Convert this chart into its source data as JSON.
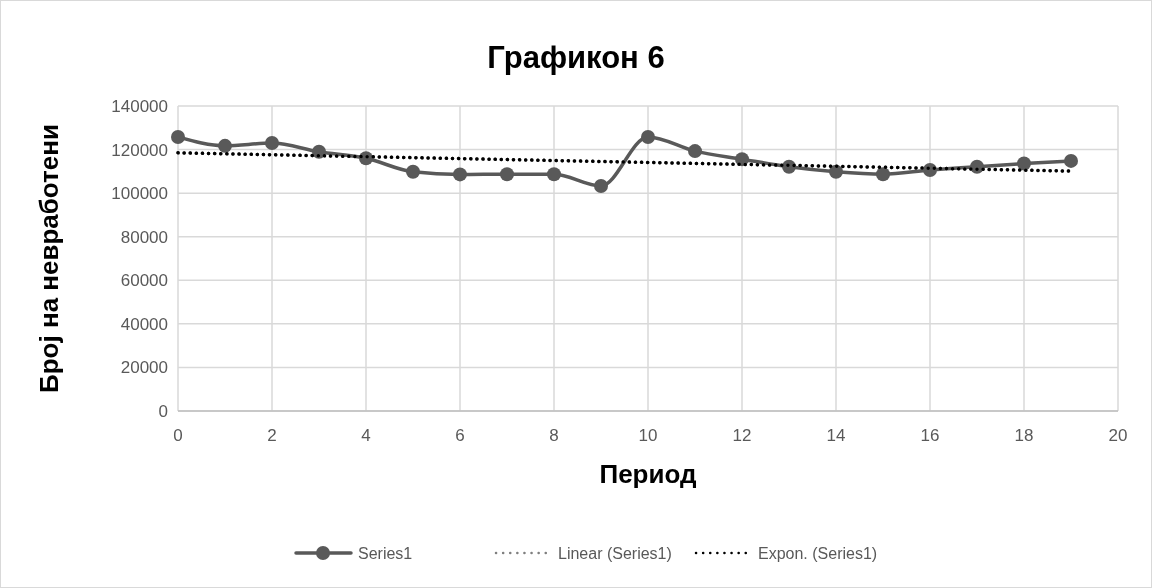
{
  "chart_data": {
    "type": "line",
    "title": "Графикон 6",
    "xlabel": "Период",
    "ylabel": "Број на невработени",
    "xlim": [
      0,
      20
    ],
    "xticks": [
      0,
      2,
      4,
      6,
      8,
      10,
      12,
      14,
      16,
      18,
      20
    ],
    "ylim": [
      0,
      140000
    ],
    "yticks": [
      0,
      20000,
      40000,
      60000,
      80000,
      100000,
      120000,
      140000
    ],
    "grid": true,
    "legend": "bottom",
    "series": [
      {
        "name": "Series1",
        "color": "#595959",
        "marker": "circle",
        "line_style": "solid",
        "x": [
          0,
          1,
          2,
          3,
          4,
          5,
          6,
          7,
          8,
          9,
          10,
          11,
          12,
          13,
          14,
          15,
          16,
          17,
          18,
          19
        ],
        "values": [
          125800,
          121700,
          123000,
          119000,
          116000,
          109800,
          108600,
          108700,
          108700,
          103300,
          125800,
          119300,
          115600,
          112100,
          109800,
          108700,
          110600,
          112100,
          113600,
          114800
        ]
      },
      {
        "name": "Linear (Series1)",
        "color": "#7f7f7f",
        "marker": "none",
        "line_style": "dotted",
        "x": [
          0,
          19
        ],
        "values": [
          118500,
          110100
        ]
      },
      {
        "name": "Expon. (Series1)",
        "color": "#000000",
        "marker": "none",
        "line_style": "dotted",
        "x": [
          0,
          19
        ],
        "values": [
          118500,
          110100
        ]
      }
    ]
  }
}
